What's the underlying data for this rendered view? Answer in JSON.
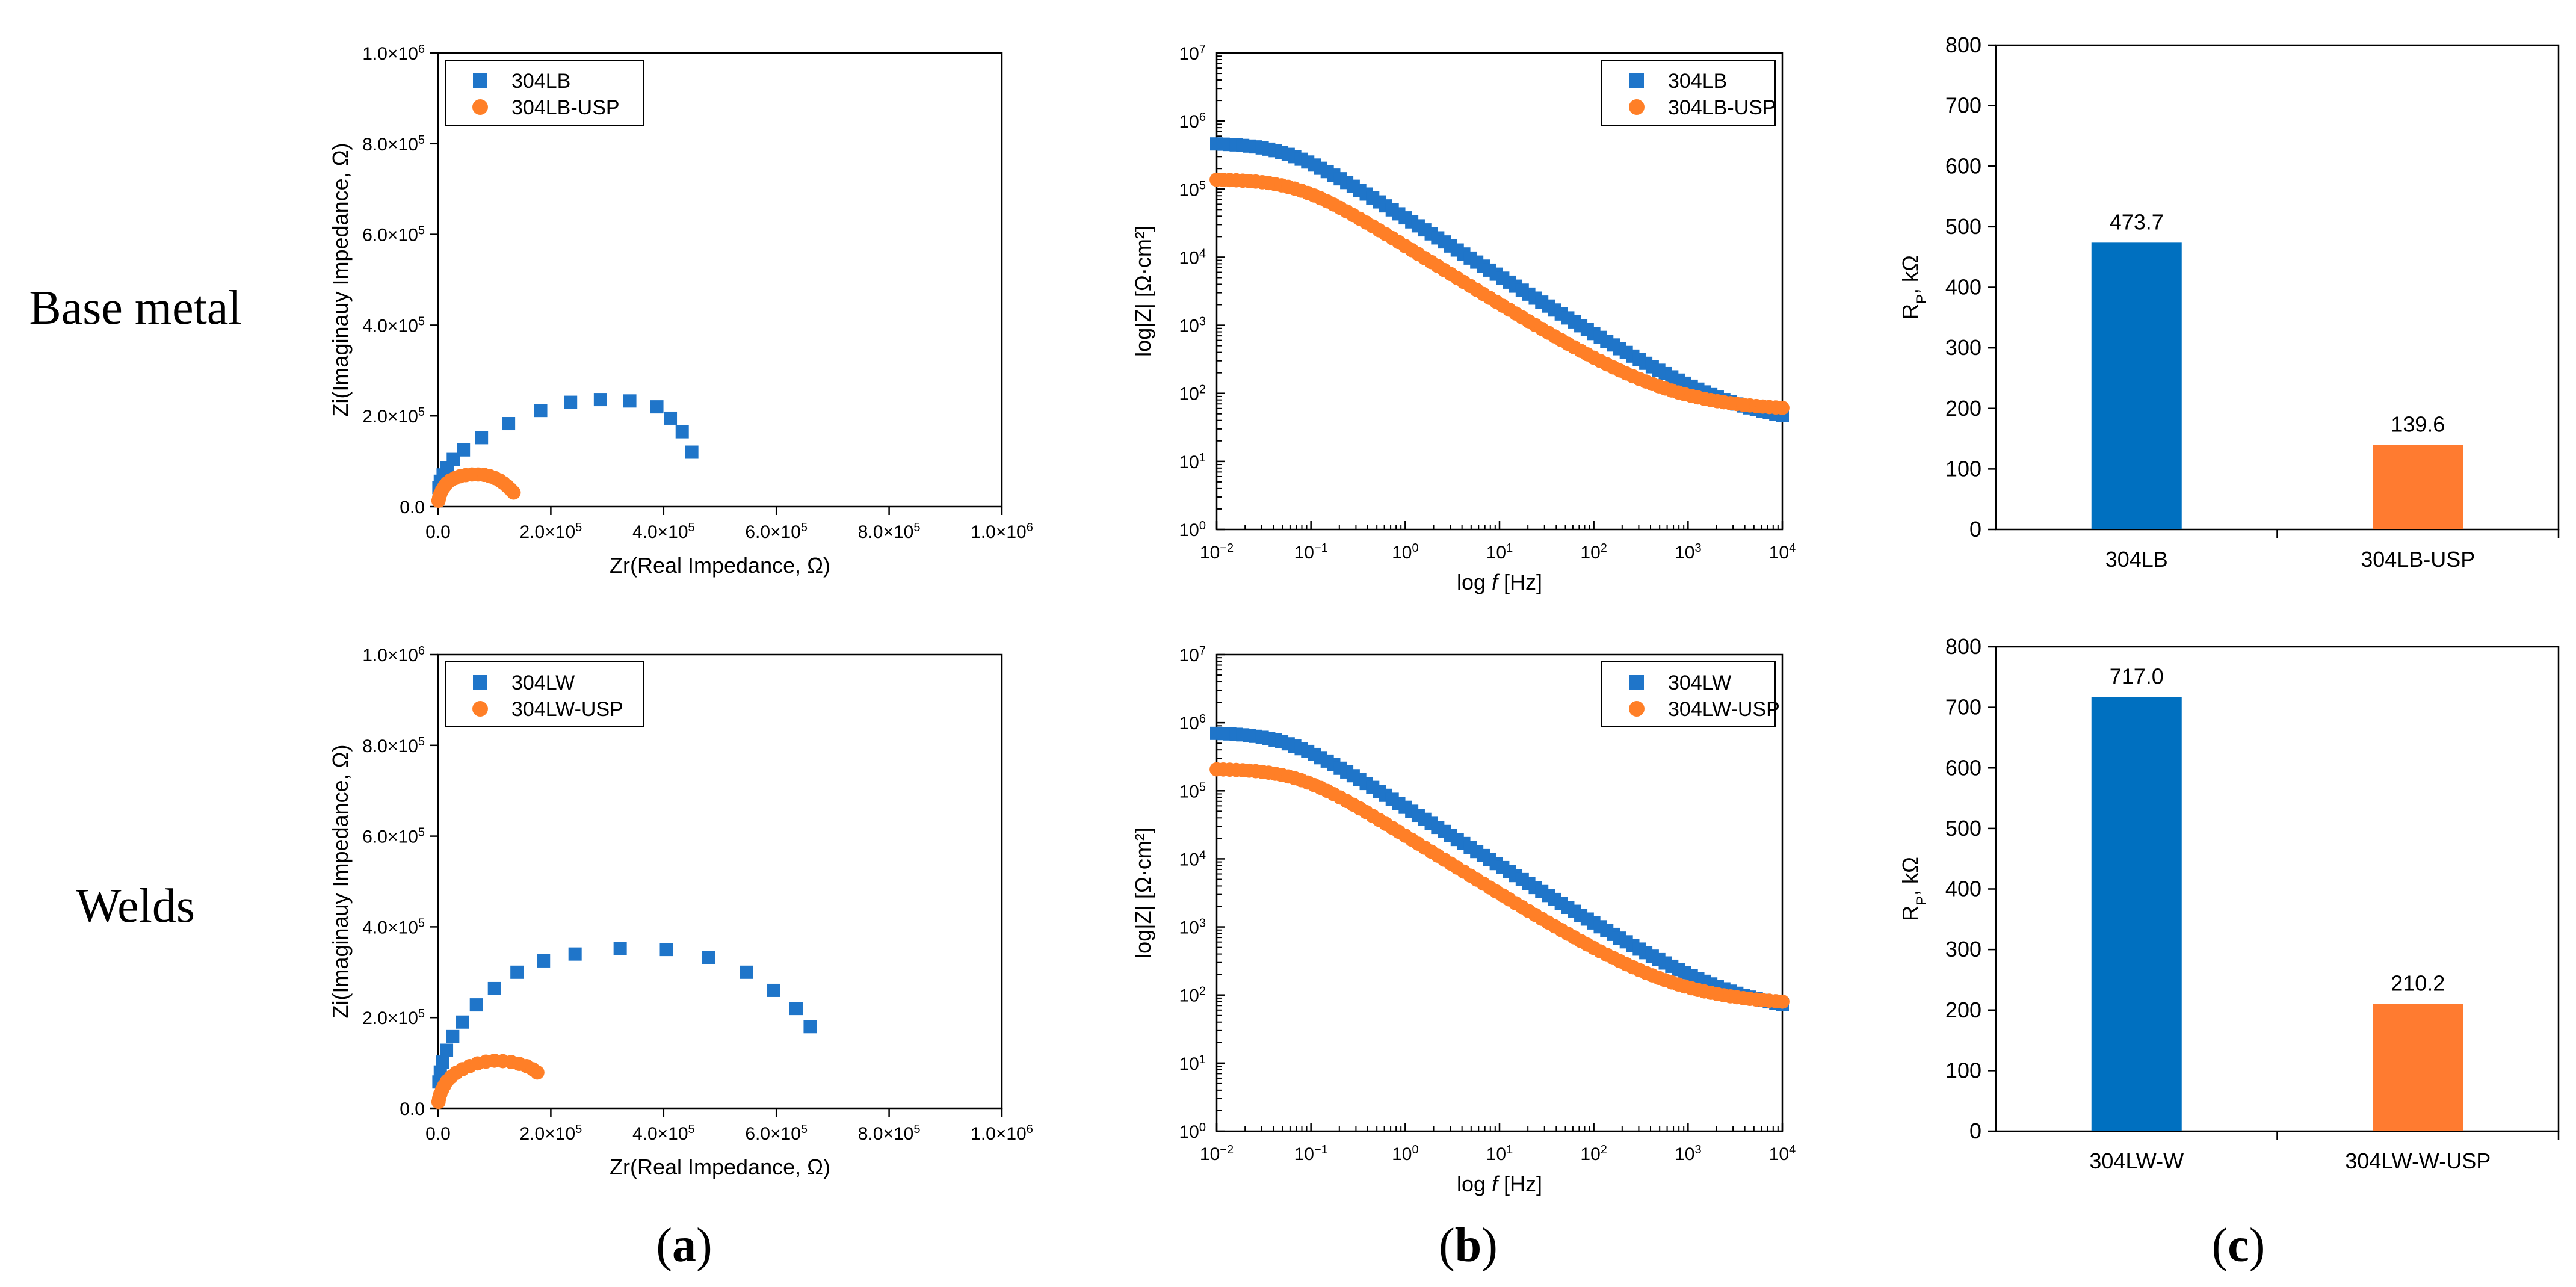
{
  "row_labels": [
    "Base metal",
    "Welds"
  ],
  "panel_labels": [
    "a",
    "b",
    "c"
  ],
  "colors": {
    "blue": "#1f75c9",
    "orange": "#ff7f27",
    "bar_blue": "#0070c0",
    "bar_orange": "#ff7b30"
  },
  "chart_data": [
    {
      "id": "nyquist-base",
      "type": "scatter",
      "row": "Base metal",
      "panel": "a",
      "xlabel": "Zr(Real Impedance, Ω)",
      "ylabel": "Zi(Imaginauy Impedance, Ω)",
      "xlim": [
        0,
        1000000
      ],
      "ylim": [
        0,
        1000000
      ],
      "xticks": [
        "0.0",
        "2.0×10^5",
        "4.0×10^5",
        "6.0×10^5",
        "8.0×10^5",
        "1.0×10^6"
      ],
      "yticks": [
        "0.0",
        "2.0×10^5",
        "4.0×10^5",
        "6.0×10^5",
        "8.0×10^5",
        "1.0×10^6"
      ],
      "legend": "top-left",
      "series": [
        {
          "name": "304LB",
          "marker": "square",
          "color": "#1f75c9",
          "x": [
            1500,
            4000,
            9000,
            16000,
            27000,
            45000,
            77000,
            125000,
            182000,
            235000,
            288000,
            340000,
            388000,
            412000,
            433000,
            450000
          ],
          "y": [
            42000,
            56000,
            70000,
            86000,
            104000,
            125000,
            152000,
            183000,
            212000,
            230000,
            236000,
            233000,
            220000,
            195000,
            165000,
            120000
          ]
        },
        {
          "name": "304LB-USP",
          "marker": "circle",
          "color": "#ff7f27",
          "x": [
            800,
            2000,
            4000,
            7000,
            11000,
            16000,
            22000,
            30000,
            39000,
            49000,
            60000,
            71000,
            82000,
            92000,
            101000,
            109000,
            116000,
            122000,
            127000,
            131000,
            134000
          ],
          "y": [
            13000,
            20000,
            28000,
            36000,
            44000,
            52000,
            58000,
            63000,
            67000,
            69500,
            71000,
            71000,
            70000,
            67000,
            63000,
            58000,
            52000,
            46000,
            40000,
            35000,
            31000
          ]
        }
      ]
    },
    {
      "id": "bode-base",
      "type": "scatter",
      "row": "Base metal",
      "panel": "b",
      "xlabel_prefix": "log ",
      "xlabel_var": "f",
      "xlabel_suffix": " [Hz]",
      "ylabel": "log|Z| [Ω·cm²]",
      "xscale": "log",
      "yscale": "log",
      "xlim_exp": [
        -2,
        4
      ],
      "ylim_exp": [
        0,
        7
      ],
      "legend": "top-right",
      "series": [
        {
          "name": "304LB",
          "marker": "square",
          "color": "#1f75c9",
          "low_value": 473700,
          "high_value": 34
        },
        {
          "name": "304LB-USP",
          "marker": "circle",
          "color": "#ff7f27",
          "low_value": 139600,
          "high_value": 56
        }
      ]
    },
    {
      "id": "rp-base",
      "type": "bar",
      "row": "Base metal",
      "panel": "c",
      "ylabel": "R",
      "ylabel_sub": "P",
      "ylabel_suffix": ", kΩ",
      "ylim": [
        0,
        800
      ],
      "yticks": [
        "0",
        "100",
        "200",
        "300",
        "400",
        "500",
        "600",
        "700",
        "800"
      ],
      "categories": [
        "304LB",
        "304LB-USP"
      ],
      "values": [
        473.7,
        139.6
      ],
      "value_labels": [
        "473.7",
        "139.6"
      ]
    },
    {
      "id": "nyquist-weld",
      "type": "scatter",
      "row": "Welds",
      "panel": "a",
      "xlabel": "Zr(Real Impedance, Ω)",
      "ylabel": "Zi(Imaginauy Impedance, Ω)",
      "xlim": [
        0,
        1000000
      ],
      "ylim": [
        0,
        1000000
      ],
      "xticks": [
        "0.0",
        "2.0×10^5",
        "4.0×10^5",
        "6.0×10^5",
        "8.0×10^5",
        "1.0×10^6"
      ],
      "yticks": [
        "0.0",
        "2.0×10^5",
        "4.0×10^5",
        "6.0×10^5",
        "8.0×10^5",
        "1.0×10^6"
      ],
      "legend": "top-left",
      "series": [
        {
          "name": "304LW",
          "marker": "square",
          "color": "#1f75c9",
          "x": [
            1500,
            4000,
            8000,
            15000,
            26000,
            43000,
            68000,
            100000,
            140000,
            187000,
            243000,
            323000,
            405000,
            480000,
            547000,
            595000,
            635000,
            660000
          ],
          "y": [
            58000,
            80000,
            102000,
            128000,
            158000,
            190000,
            228000,
            264000,
            300000,
            325000,
            340000,
            352000,
            350000,
            332000,
            300000,
            260000,
            220000,
            180000
          ]
        },
        {
          "name": "304LW-USP",
          "marker": "circle",
          "color": "#ff7f27",
          "x": [
            800,
            2000,
            4000,
            7000,
            11000,
            16000,
            23000,
            32000,
            43000,
            56000,
            70000,
            85000,
            100000,
            115000,
            130000,
            144000,
            157000,
            168000,
            176000
          ],
          "y": [
            14000,
            22000,
            31000,
            40000,
            50000,
            60000,
            69000,
            78000,
            86000,
            93000,
            99000,
            103000,
            105000,
            104000,
            102000,
            98000,
            93000,
            86000,
            79000
          ]
        }
      ]
    },
    {
      "id": "bode-weld",
      "type": "scatter",
      "row": "Welds",
      "panel": "b",
      "xlabel_prefix": "log ",
      "xlabel_var": "f",
      "xlabel_suffix": " [Hz]",
      "ylabel": "log|Z| [Ω·cm²]",
      "xscale": "log",
      "yscale": "log",
      "xlim_exp": [
        -2,
        4
      ],
      "ylim_exp": [
        0,
        7
      ],
      "legend": "top-right",
      "series": [
        {
          "name": "304LW",
          "marker": "square",
          "color": "#1f75c9",
          "low_value": 717000,
          "high_value": 52
        },
        {
          "name": "304LW-USP",
          "marker": "circle",
          "color": "#ff7f27",
          "low_value": 210200,
          "high_value": 72
        }
      ]
    },
    {
      "id": "rp-weld",
      "type": "bar",
      "row": "Welds",
      "panel": "c",
      "ylabel": "R",
      "ylabel_sub": "P",
      "ylabel_suffix": ", kΩ",
      "ylim": [
        0,
        800
      ],
      "yticks": [
        "0",
        "100",
        "200",
        "300",
        "400",
        "500",
        "600",
        "700",
        "800"
      ],
      "categories": [
        "304LW-W",
        "304LW-W-USP"
      ],
      "values": [
        717.0,
        210.2
      ],
      "value_labels": [
        "717.0",
        "210.2"
      ]
    }
  ]
}
